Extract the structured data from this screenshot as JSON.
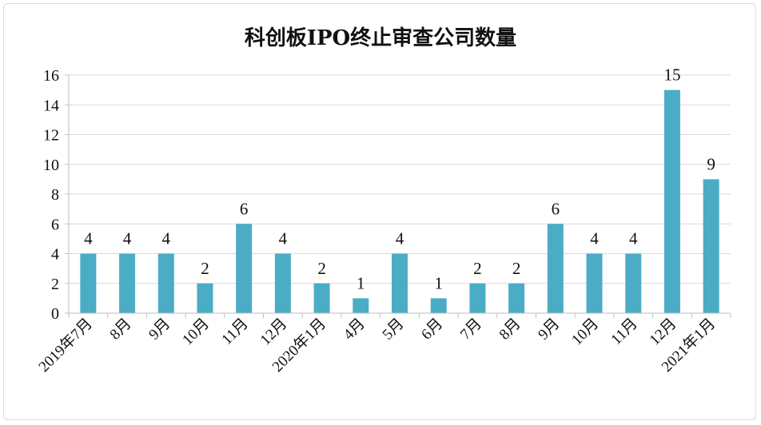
{
  "chart_data": {
    "type": "bar",
    "title": "科创板IPO终止审查公司数量",
    "categories": [
      "2019年7月",
      "8月",
      "9月",
      "10月",
      "11月",
      "12月",
      "2020年1月",
      "4月",
      "5月",
      "6月",
      "7月",
      "8月",
      "9月",
      "10月",
      "11月",
      "12月",
      "2021年1月"
    ],
    "values": [
      4,
      4,
      4,
      2,
      6,
      4,
      2,
      1,
      4,
      1,
      2,
      2,
      6,
      4,
      4,
      15,
      9
    ],
    "ylim": [
      0,
      16
    ],
    "yticks": [
      0,
      2,
      4,
      6,
      8,
      10,
      12,
      14,
      16
    ],
    "grid": true,
    "legend": "none",
    "bar_color": "#4bacc6"
  }
}
